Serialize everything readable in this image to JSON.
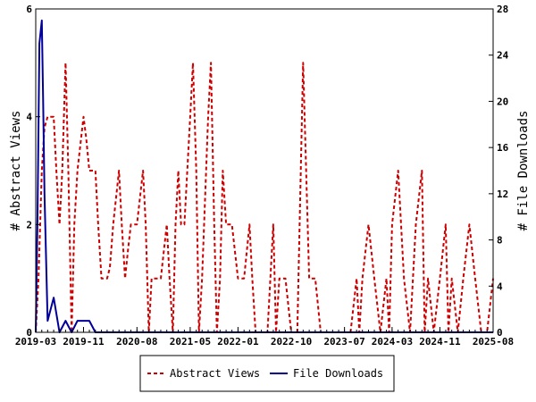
{
  "chart_data": {
    "type": "line",
    "x_ticks": [
      "2019-03",
      "2019-11",
      "2020-08",
      "2021-05",
      "2022-01",
      "2022-10",
      "2023-07",
      "2024-03",
      "2024-11",
      "2025-08"
    ],
    "y_left": {
      "label": "# Abstract Views",
      "range": [
        0,
        6
      ],
      "ticks": [
        0,
        2,
        4,
        6
      ]
    },
    "y_right": {
      "label": "# File Downloads",
      "range": [
        0,
        28
      ],
      "ticks": [
        0,
        4,
        8,
        12,
        16,
        20,
        24,
        28
      ]
    },
    "legend_position": "bottom",
    "series": [
      {
        "name": "Abstract Views",
        "axis": "left",
        "color": "#cc0000",
        "style": "dashed",
        "points": [
          [
            "2019-03-01",
            0
          ],
          [
            "2019-03-15",
            1
          ],
          [
            "2019-04-01",
            3
          ],
          [
            "2019-04-15",
            3.8
          ],
          [
            "2019-05-01",
            4
          ],
          [
            "2019-06-01",
            4
          ],
          [
            "2019-06-15",
            3
          ],
          [
            "2019-07-01",
            2
          ],
          [
            "2019-07-15",
            3
          ],
          [
            "2019-08-01",
            5
          ],
          [
            "2019-08-15",
            3
          ],
          [
            "2019-09-01",
            0
          ],
          [
            "2019-09-15",
            2
          ],
          [
            "2019-10-01",
            3
          ],
          [
            "2019-11-01",
            4
          ],
          [
            "2019-11-15",
            3.6
          ],
          [
            "2019-12-01",
            3
          ],
          [
            "2020-01-01",
            3
          ],
          [
            "2020-01-15",
            2
          ],
          [
            "2020-02-01",
            1
          ],
          [
            "2020-03-01",
            1
          ],
          [
            "2020-03-15",
            1.2
          ],
          [
            "2020-04-01",
            2
          ],
          [
            "2020-05-01",
            3
          ],
          [
            "2020-05-15",
            2
          ],
          [
            "2020-06-01",
            1
          ],
          [
            "2020-06-15",
            1.5
          ],
          [
            "2020-07-01",
            2
          ],
          [
            "2020-08-01",
            2
          ],
          [
            "2020-09-01",
            3
          ],
          [
            "2020-09-15",
            2
          ],
          [
            "2020-10-01",
            0
          ],
          [
            "2020-10-15",
            1
          ],
          [
            "2020-11-01",
            1
          ],
          [
            "2020-12-01",
            1
          ],
          [
            "2021-01-01",
            2
          ],
          [
            "2021-01-15",
            1
          ],
          [
            "2021-02-01",
            0
          ],
          [
            "2021-02-15",
            2
          ],
          [
            "2021-03-01",
            3
          ],
          [
            "2021-03-15",
            2
          ],
          [
            "2021-04-01",
            2
          ],
          [
            "2021-05-01",
            4
          ],
          [
            "2021-05-15",
            5
          ],
          [
            "2021-06-01",
            3
          ],
          [
            "2021-06-15",
            0
          ],
          [
            "2021-07-01",
            1
          ],
          [
            "2021-08-01",
            4
          ],
          [
            "2021-08-15",
            5
          ],
          [
            "2021-09-01",
            2
          ],
          [
            "2021-09-15",
            0
          ],
          [
            "2021-10-01",
            1
          ],
          [
            "2021-10-15",
            3
          ],
          [
            "2021-11-01",
            2
          ],
          [
            "2021-12-01",
            2
          ],
          [
            "2022-01-01",
            1
          ],
          [
            "2022-02-01",
            1
          ],
          [
            "2022-03-01",
            2
          ],
          [
            "2022-03-15",
            1
          ],
          [
            "2022-04-01",
            0
          ],
          [
            "2022-05-01",
            0
          ],
          [
            "2022-06-01",
            0
          ],
          [
            "2022-07-01",
            2
          ],
          [
            "2022-07-15",
            0
          ],
          [
            "2022-08-01",
            1
          ],
          [
            "2022-09-01",
            1
          ],
          [
            "2022-10-01",
            0
          ],
          [
            "2022-11-01",
            0
          ],
          [
            "2022-12-01",
            5
          ],
          [
            "2023-01-01",
            1
          ],
          [
            "2023-02-01",
            1
          ],
          [
            "2023-03-01",
            0
          ],
          [
            "2023-04-01",
            0
          ],
          [
            "2023-05-01",
            0
          ],
          [
            "2023-06-01",
            0
          ],
          [
            "2023-07-01",
            0
          ],
          [
            "2023-08-01",
            0
          ],
          [
            "2023-09-01",
            1
          ],
          [
            "2023-09-15",
            0
          ],
          [
            "2023-10-01",
            1
          ],
          [
            "2023-11-01",
            2
          ],
          [
            "2023-12-01",
            1
          ],
          [
            "2024-01-01",
            0
          ],
          [
            "2024-02-01",
            1
          ],
          [
            "2024-02-15",
            0
          ],
          [
            "2024-03-01",
            2
          ],
          [
            "2024-04-01",
            3
          ],
          [
            "2024-05-01",
            1
          ],
          [
            "2024-06-01",
            0
          ],
          [
            "2024-07-01",
            2
          ],
          [
            "2024-08-01",
            3
          ],
          [
            "2024-08-15",
            0
          ],
          [
            "2024-09-01",
            1
          ],
          [
            "2024-10-01",
            0
          ],
          [
            "2024-11-01",
            1
          ],
          [
            "2024-12-01",
            2
          ],
          [
            "2024-12-15",
            0
          ],
          [
            "2025-01-01",
            1
          ],
          [
            "2025-02-01",
            0
          ],
          [
            "2025-03-01",
            1
          ],
          [
            "2025-04-01",
            2
          ],
          [
            "2025-05-01",
            1
          ],
          [
            "2025-06-01",
            0
          ],
          [
            "2025-07-01",
            0
          ],
          [
            "2025-08-01",
            1
          ]
        ]
      },
      {
        "name": "File Downloads",
        "axis": "right",
        "color": "#000099",
        "style": "solid",
        "points": [
          [
            "2019-03-01",
            0
          ],
          [
            "2019-03-10",
            10
          ],
          [
            "2019-03-20",
            25
          ],
          [
            "2019-04-01",
            27
          ],
          [
            "2019-04-08",
            20
          ],
          [
            "2019-04-15",
            12
          ],
          [
            "2019-05-01",
            1
          ],
          [
            "2019-06-01",
            3
          ],
          [
            "2019-07-01",
            0
          ],
          [
            "2019-08-01",
            1
          ],
          [
            "2019-09-01",
            0
          ],
          [
            "2019-10-01",
            1
          ],
          [
            "2019-11-01",
            1
          ],
          [
            "2019-12-01",
            1
          ],
          [
            "2020-01-01",
            0
          ],
          [
            "2020-03-01",
            0
          ],
          [
            "2020-08-01",
            0
          ],
          [
            "2021-05-01",
            0
          ],
          [
            "2022-01-01",
            0
          ],
          [
            "2022-10-01",
            0
          ],
          [
            "2023-07-01",
            0
          ],
          [
            "2024-03-01",
            0
          ],
          [
            "2024-11-01",
            0
          ],
          [
            "2025-08-01",
            0
          ]
        ]
      }
    ]
  }
}
